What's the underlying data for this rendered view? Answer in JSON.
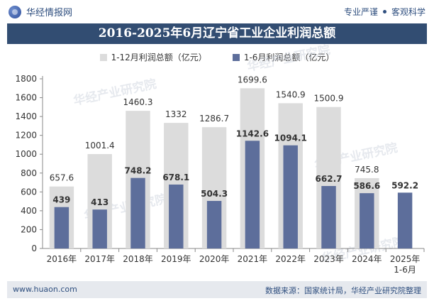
{
  "header": {
    "brand": "华经情报网",
    "tagline": [
      "专业严谨",
      "客观科学"
    ]
  },
  "chart_data": {
    "type": "bar",
    "title": "2016-2025年6月辽宁省工业企业利润总额",
    "categories": [
      "2016年",
      "2017年",
      "2018年",
      "2019年",
      "2020年",
      "2021年",
      "2022年",
      "2023年",
      "2024年",
      "2025年\n1-6月"
    ],
    "series": [
      {
        "name": "1-12月利润总额（亿元）",
        "color": "#dcdcdc",
        "labelColor": "#333333",
        "values": [
          657.6,
          1001.4,
          1460.3,
          1332,
          1286.7,
          1699.6,
          1540.9,
          1500.9,
          745.8,
          null
        ]
      },
      {
        "name": "1-6月利润总额（亿元）",
        "color": "#5d6e9b",
        "labelColor": "#333333",
        "values": [
          439,
          413,
          748.2,
          678.1,
          504.3,
          1142.6,
          1094.1,
          662.7,
          586.6,
          592.2
        ]
      }
    ],
    "ylim": [
      0,
      1800
    ],
    "yticks": [
      0,
      200,
      400,
      600,
      800,
      1000,
      1200,
      1400,
      1600,
      1800
    ],
    "legend": "top-center",
    "grid": false
  },
  "watermark": "华经产业研究院",
  "footer": {
    "left": "www.huaon.com",
    "right": "数据来源：国家统计局，华经产业研究院整理"
  }
}
